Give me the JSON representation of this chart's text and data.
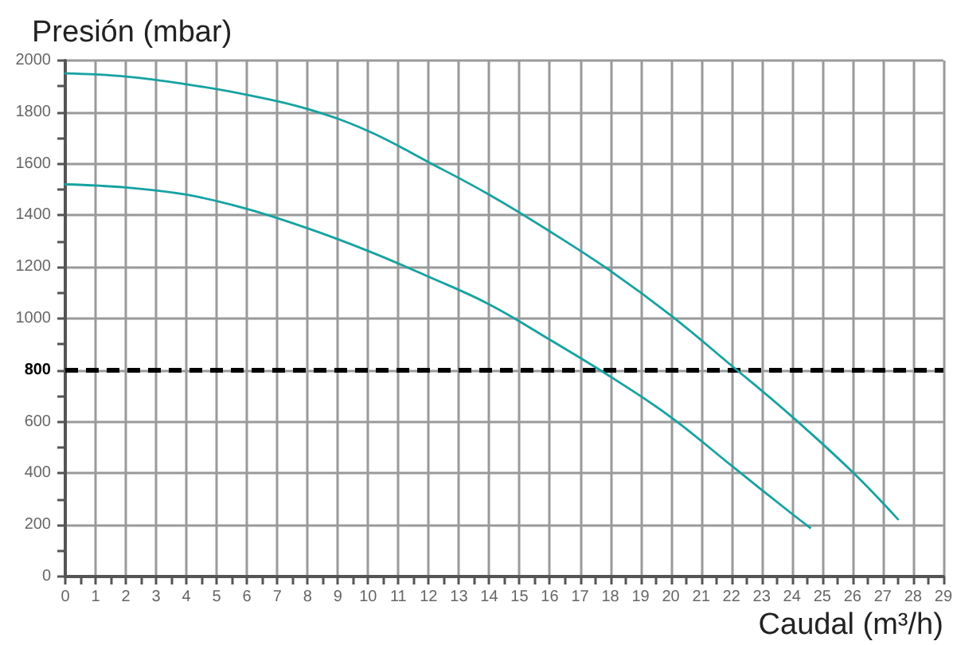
{
  "chart_data": {
    "type": "line",
    "xlabel": "Caudal (m³/h)",
    "ylabel": "Presión (mbar)",
    "xlim": [
      0,
      29
    ],
    "xticks": [
      0,
      {
        "value": 0.5,
        "label": null
      },
      1,
      {
        "value": 1.5,
        "label": null
      },
      2,
      {
        "value": 2.5,
        "label": null
      },
      3,
      {
        "value": 3.5,
        "label": null
      },
      4,
      {
        "value": 4.5,
        "label": null
      },
      5,
      {
        "value": 5.5,
        "label": null
      },
      6,
      {
        "value": 6.5,
        "label": null
      },
      7,
      {
        "value": 7.5,
        "label": null
      },
      8,
      {
        "value": 8.5,
        "label": null
      },
      9,
      {
        "value": 9.5,
        "label": null
      },
      10,
      {
        "value": 10.5,
        "label": null
      },
      11,
      {
        "value": 11.5,
        "label": null
      },
      12,
      {
        "value": 12.5,
        "label": null
      },
      13,
      {
        "value": 13.5,
        "label": null
      },
      14,
      {
        "value": 14.5,
        "label": null
      },
      15,
      {
        "value": 15.5,
        "label": null
      },
      16,
      {
        "value": 16.5,
        "label": null
      },
      17,
      {
        "value": 17.5,
        "label": null
      },
      18,
      {
        "value": 18.5,
        "label": null
      },
      19,
      {
        "value": 19.5,
        "label": null
      },
      20,
      {
        "value": 20.5,
        "label": null
      },
      21,
      {
        "value": 21.5,
        "label": null
      },
      22,
      {
        "value": 22.5,
        "label": null
      },
      23,
      {
        "value": 23.5,
        "label": null
      },
      24,
      {
        "value": 24.5,
        "label": null
      },
      25,
      {
        "value": 25.5,
        "label": null
      },
      26,
      {
        "value": 26.5,
        "label": null
      },
      27,
      {
        "value": 27.5,
        "label": null
      },
      28,
      {
        "value": 28.5,
        "label": null
      },
      29
    ],
    "ylim": [
      0,
      2000
    ],
    "yticks": [
      0,
      {
        "value": 100,
        "label": null
      },
      200,
      {
        "value": 300,
        "label": null
      },
      400,
      {
        "value": 500,
        "label": null
      },
      600,
      {
        "value": 700,
        "label": null
      },
      800,
      {
        "value": 900,
        "label": null
      },
      1000,
      {
        "value": 1100,
        "label": null
      },
      1200,
      {
        "value": 1300,
        "label": null
      },
      1400,
      {
        "value": 1500,
        "label": null
      },
      1600,
      {
        "value": 1700,
        "label": null
      },
      1800,
      {
        "value": 1900,
        "label": null
      },
      2000
    ],
    "grid": true,
    "marker": "none",
    "line_style": "solid",
    "series": [
      {
        "color": "#17a2a2",
        "x": [
          0,
          2,
          4,
          6,
          8,
          10,
          12,
          14,
          16,
          18,
          20,
          22,
          24,
          26,
          27.5
        ],
        "values": [
          1950,
          1938,
          1908,
          1867,
          1812,
          1727,
          1606,
          1480,
          1338,
          1185,
          1012,
          818,
          620,
          405,
          222
        ]
      },
      {
        "color": "#17a2a2",
        "x": [
          0,
          2,
          4,
          6,
          8,
          10,
          12,
          14,
          16,
          18,
          20,
          22,
          24,
          24.6
        ],
        "values": [
          1520,
          1508,
          1480,
          1425,
          1350,
          1262,
          1162,
          1055,
          918,
          775,
          618,
          430,
          243,
          189
        ]
      }
    ],
    "ref_lines": [
      {
        "axis": "y",
        "value": 800,
        "color": "#000000",
        "line_style": "dashed"
      }
    ]
  }
}
